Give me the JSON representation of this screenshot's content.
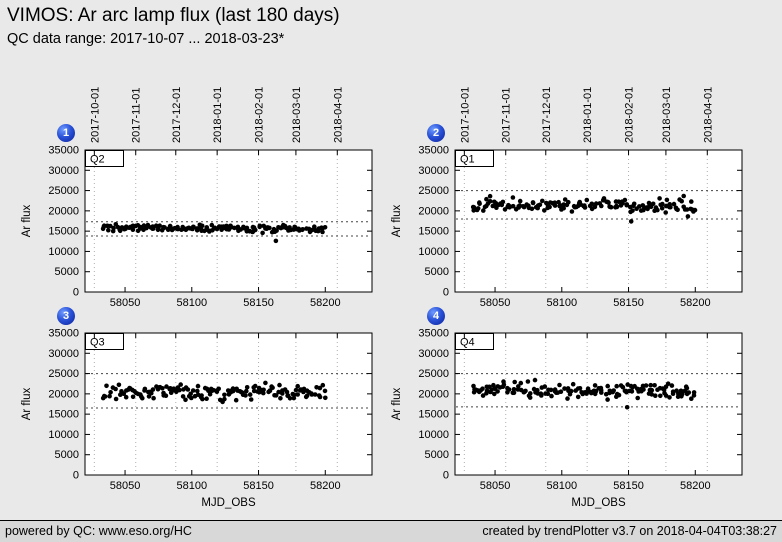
{
  "header": {
    "title": "VIMOS: Ar arc lamp flux (last 180 days)",
    "subtitle": "QC data range: 2017-10-07 ... 2018-03-23*"
  },
  "footer": {
    "left": "powered by QC: www.eso.org/HC",
    "right": "created by trendPlotter v3.7 on 2018-04-04T03:38:27"
  },
  "axes": {
    "ylabel": "Ar flux",
    "xlabel": "MJD_OBS",
    "ylim": [
      0,
      35000
    ],
    "yticks": [
      0,
      5000,
      10000,
      15000,
      20000,
      25000,
      30000,
      35000
    ],
    "xlim": [
      58020,
      58235
    ],
    "xticks": [
      58050,
      58100,
      58150,
      58200
    ],
    "date_ticks": [
      {
        "label": "2017-10-01",
        "mjd": 58027
      },
      {
        "label": "2017-11-01",
        "mjd": 58058
      },
      {
        "label": "2017-12-01",
        "mjd": 58088
      },
      {
        "label": "2018-01-01",
        "mjd": 58119
      },
      {
        "label": "2018-02-01",
        "mjd": 58150
      },
      {
        "label": "2018-03-01",
        "mjd": 58178
      },
      {
        "label": "2018-04-01",
        "mjd": 58209
      }
    ],
    "grid": true
  },
  "chart_data": [
    {
      "type": "scatter",
      "panel": 1,
      "badge": "1",
      "label": "Q2",
      "x_start": 58033,
      "x_end": 58200,
      "n_points": 170,
      "mean": 15700,
      "std": 450,
      "trend": -200,
      "seed": 101,
      "outliers": [
        [
          58163,
          12600
        ]
      ],
      "ref_lines": [
        13800,
        17300
      ],
      "marker_color": "#000000"
    },
    {
      "type": "scatter",
      "panel": 2,
      "badge": "2",
      "label": "Q1",
      "x_start": 58033,
      "x_end": 58200,
      "n_points": 160,
      "mean": 21300,
      "std": 850,
      "trend": -300,
      "seed": 202,
      "outliers": [
        [
          58152,
          17400
        ]
      ],
      "ref_lines": [
        18000,
        25000
      ],
      "marker_color": "#000000"
    },
    {
      "type": "scatter",
      "panel": 3,
      "badge": "3",
      "label": "Q3",
      "x_start": 58033,
      "x_end": 58200,
      "n_points": 160,
      "mean": 20400,
      "std": 1000,
      "trend": 0,
      "seed": 303,
      "outliers": [],
      "ref_lines": [
        16500,
        25000
      ],
      "marker_color": "#000000"
    },
    {
      "type": "scatter",
      "panel": 4,
      "badge": "4",
      "label": "Q4",
      "x_start": 58033,
      "x_end": 58200,
      "n_points": 160,
      "mean": 20700,
      "std": 950,
      "trend": -150,
      "seed": 404,
      "outliers": [
        [
          58149,
          16700
        ]
      ],
      "ref_lines": [
        16800,
        25000
      ],
      "marker_color": "#000000"
    }
  ],
  "colors": {
    "background": "#e9e9e9",
    "plot_bg": "#ffffff",
    "frame": "#000000",
    "marker": "#000000",
    "badge_blue": "#1b3fd1",
    "footer_bg": "#d8d8d8",
    "grid_line": "#b0b0b0",
    "ref_line": "#444444"
  }
}
